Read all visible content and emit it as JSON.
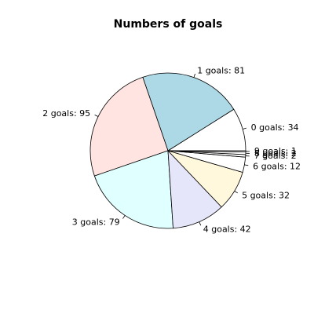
{
  "chart_data": {
    "type": "pie",
    "title": "Numbers of goals",
    "start_angle_deg": 0,
    "direction": "counterclockwise",
    "slices": [
      {
        "label": "0 goals: 34",
        "value": 34,
        "color": "#ffffff"
      },
      {
        "label": "1 goals: 81",
        "value": 81,
        "color": "#add8e6"
      },
      {
        "label": "2 goals: 95",
        "value": 95,
        "color": "#ffe4e1"
      },
      {
        "label": "3 goals: 79",
        "value": 79,
        "color": "#e0ffff"
      },
      {
        "label": "4 goals: 42",
        "value": 42,
        "color": "#e6e6fa"
      },
      {
        "label": "5 goals: 32",
        "value": 32,
        "color": "#fff8dc"
      },
      {
        "label": "6 goals: 12",
        "value": 12,
        "color": "#ffffff"
      },
      {
        "label": "7 goals: 2",
        "value": 2,
        "color": "#ffffff"
      },
      {
        "label": "8 goals: 2",
        "value": 2,
        "color": "#ffffff"
      },
      {
        "label": "9 goals: 1",
        "value": 1,
        "color": "#ffffff"
      }
    ]
  }
}
